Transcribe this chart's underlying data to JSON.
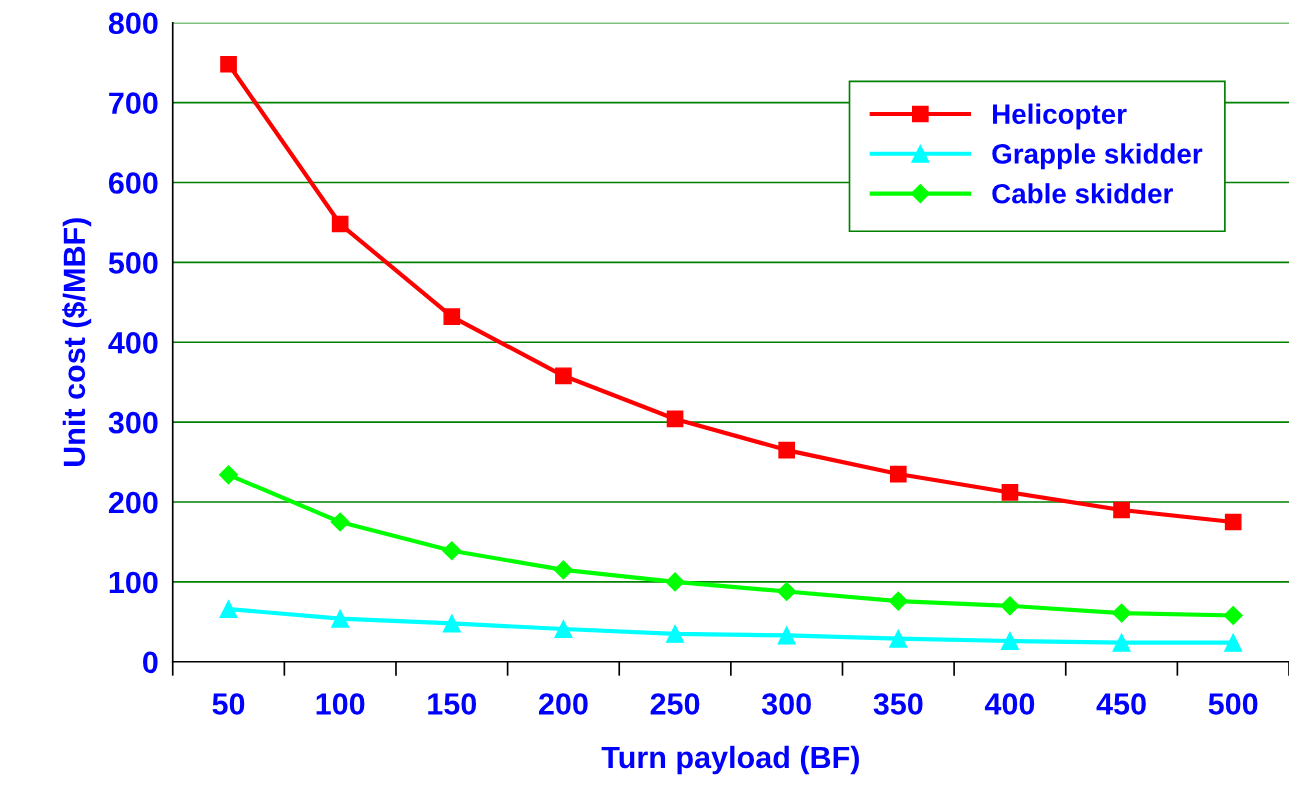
{
  "chart_data": {
    "type": "line",
    "xlabel": "Turn payload (BF)",
    "ylabel": "Unit cost ($/MBF)",
    "categories": [
      "50",
      "100",
      "150",
      "200",
      "250",
      "300",
      "350",
      "400",
      "450",
      "500"
    ],
    "series": [
      {
        "name": "Helicopter",
        "color": "#ff0000",
        "marker": "square",
        "values": [
          748,
          548,
          432,
          358,
          304,
          265,
          235,
          212,
          190,
          175
        ]
      },
      {
        "name": "Grapple skidder",
        "color": "#00ffff",
        "marker": "triangle",
        "values": [
          66,
          54,
          48,
          41,
          35,
          33,
          29,
          26,
          24,
          24
        ]
      },
      {
        "name": "Cable skidder",
        "color": "#00ff00",
        "marker": "diamond",
        "values": [
          234,
          175,
          139,
          115,
          100,
          88,
          76,
          70,
          61,
          58
        ]
      }
    ],
    "ylim": [
      0,
      800
    ],
    "yticks": [
      0,
      100,
      200,
      300,
      400,
      500,
      600,
      700,
      800
    ],
    "grid": "y",
    "legend": "top right",
    "line_style": "solid"
  }
}
